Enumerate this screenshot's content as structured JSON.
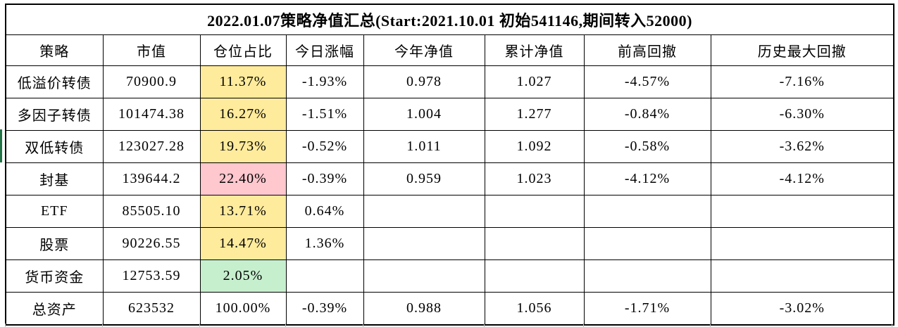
{
  "title": "2022.01.07策略净值汇总(Start:2021.10.01 初始541146,期间转入52000)",
  "columns": [
    "策略",
    "市值",
    "仓位占比",
    "今日涨幅",
    "今年净值",
    "累计净值",
    "前高回撤",
    "历史最大回撤"
  ],
  "rows": [
    {
      "strategy": "低溢价转债",
      "market_value": "70900.9",
      "position_ratio": "11.37%",
      "ratio_style": "neutral",
      "today_change": "-1.93%",
      "ytd_nav": "0.978",
      "cumulative_nav": "1.027",
      "drawdown_from_high": "-4.57%",
      "historical_max_drawdown": "-7.16%"
    },
    {
      "strategy": "多因子转债",
      "market_value": "101474.38",
      "position_ratio": "16.27%",
      "ratio_style": "neutral",
      "today_change": "-1.51%",
      "ytd_nav": "1.004",
      "cumulative_nav": "1.277",
      "drawdown_from_high": "-0.84%",
      "historical_max_drawdown": "-6.30%"
    },
    {
      "strategy": "双低转债",
      "market_value": "123027.28",
      "position_ratio": "19.73%",
      "ratio_style": "neutral",
      "today_change": "-0.52%",
      "ytd_nav": "1.011",
      "cumulative_nav": "1.092",
      "drawdown_from_high": "-0.58%",
      "historical_max_drawdown": "-3.62%"
    },
    {
      "strategy": "封基",
      "market_value": "139644.2",
      "position_ratio": "22.40%",
      "ratio_style": "bad",
      "today_change": "-0.39%",
      "ytd_nav": "0.959",
      "cumulative_nav": "1.023",
      "drawdown_from_high": "-4.12%",
      "historical_max_drawdown": "-4.12%"
    },
    {
      "strategy": "ETF",
      "market_value": "85505.10",
      "position_ratio": "13.71%",
      "ratio_style": "neutral",
      "today_change": "0.64%",
      "ytd_nav": "",
      "cumulative_nav": "",
      "drawdown_from_high": "",
      "historical_max_drawdown": ""
    },
    {
      "strategy": "股票",
      "market_value": "90226.55",
      "position_ratio": "14.47%",
      "ratio_style": "neutral",
      "today_change": "1.36%",
      "ytd_nav": "",
      "cumulative_nav": "",
      "drawdown_from_high": "",
      "historical_max_drawdown": ""
    },
    {
      "strategy": "货币资金",
      "market_value": "12753.59",
      "position_ratio": "2.05%",
      "ratio_style": "good",
      "today_change": "",
      "ytd_nav": "",
      "cumulative_nav": "",
      "drawdown_from_high": "",
      "historical_max_drawdown": ""
    },
    {
      "strategy": "总资产",
      "market_value": "623532",
      "position_ratio": "100.00%",
      "ratio_style": "",
      "today_change": "-0.39%",
      "ytd_nav": "0.988",
      "cumulative_nav": "1.056",
      "drawdown_from_high": "-1.71%",
      "historical_max_drawdown": "-3.02%"
    }
  ],
  "colors": {
    "neutral_bg": "#FFEB9C",
    "neutral_text": "#9C6500",
    "bad_bg": "#FFC7CE",
    "bad_text": "#9C0006",
    "good_bg": "#C6EFCE",
    "good_text": "#006100",
    "selection_green": "#217346",
    "grid_border": "#000000"
  }
}
